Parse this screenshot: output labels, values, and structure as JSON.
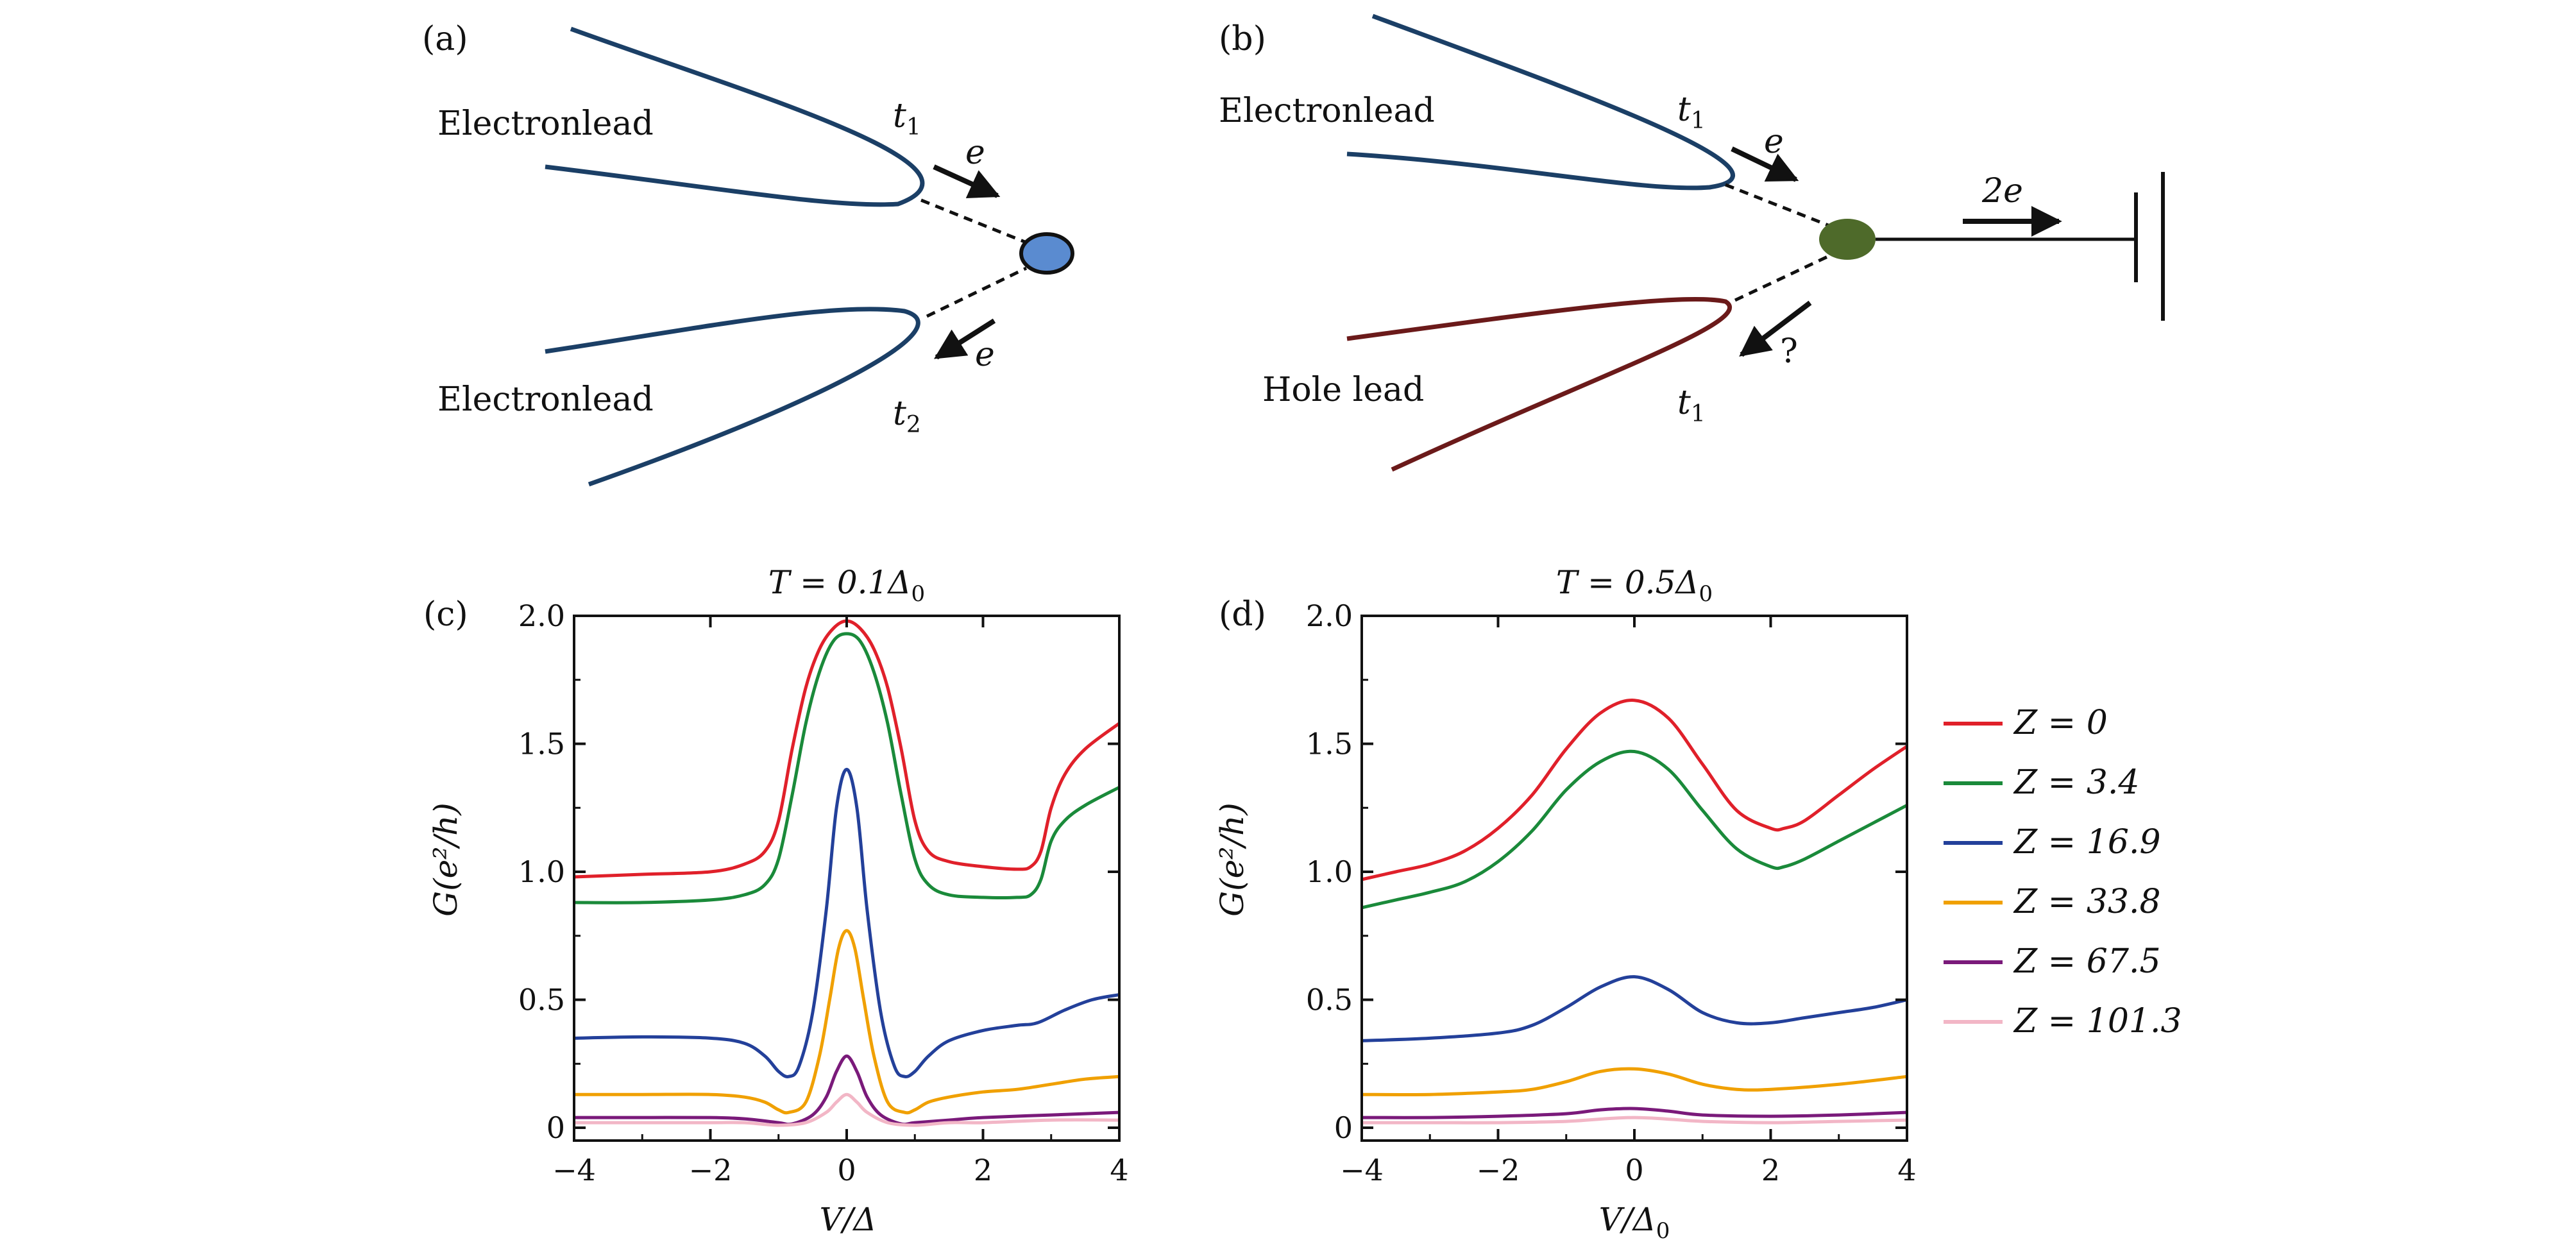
{
  "figure": {
    "panel_a": {
      "tag": "(a)",
      "top_lead": "Electronlead",
      "bottom_lead": "Electronlead",
      "t_top": "t",
      "t_top_sub": "1",
      "t_bottom": "t",
      "t_bottom_sub": "2",
      "e_in": "e",
      "e_out": "e",
      "colors": {
        "lead": "#1b3f66",
        "dot": "#5a8bd0"
      }
    },
    "panel_b": {
      "tag": "(b)",
      "top_lead": "Electronlead",
      "bottom_lead": "Hole lead",
      "t_top": "t",
      "t_top_sub": "1",
      "t_bottom": "t",
      "t_bottom_sub": "1",
      "e_in": "e",
      "two_e": "2e",
      "question": "?",
      "colors": {
        "electron_lead": "#1b3f66",
        "hole_lead": "#6b1a1a",
        "dot": "#4e6a2a"
      }
    }
  },
  "legend": {
    "items": [
      {
        "label": "Z = 0",
        "color": "#e0202a"
      },
      {
        "label": "Z = 3.4",
        "color": "#1a8a3a"
      },
      {
        "label": "Z = 16.9",
        "color": "#23409a"
      },
      {
        "label": "Z = 33.8",
        "color": "#f0a000"
      },
      {
        "label": "Z = 67.5",
        "color": "#7a1a7a"
      },
      {
        "label": "Z = 101.3",
        "color": "#f2b6c6"
      }
    ]
  },
  "chart_data": [
    {
      "type": "line",
      "panel_tag": "(c)",
      "title": "T = 0.1Δ",
      "title_sub": "0",
      "xlabel": "V/Δ",
      "xlabel_sub": "",
      "ylabel": "G(e²/h)",
      "xlim": [
        -4,
        4
      ],
      "ylim": [
        -0.05,
        2.0
      ],
      "xticks": [
        -4,
        -2,
        0,
        2,
        4
      ],
      "xtick_labels": [
        "−4",
        "−2",
        "0",
        "2",
        "4"
      ],
      "yticks": [
        0,
        0.5,
        1.0,
        1.5,
        2.0
      ],
      "ytick_labels": [
        "0",
        "0.5",
        "1.0",
        "1.5",
        "2.0"
      ],
      "series": [
        {
          "name": "Z = 0",
          "color": "#e0202a",
          "x": [
            -4,
            -3,
            -2,
            -1.5,
            -1.2,
            -1.0,
            -0.8,
            -0.6,
            -0.4,
            -0.2,
            0,
            0.2,
            0.4,
            0.6,
            0.8,
            1.0,
            1.2,
            1.5,
            2.0,
            2.5,
            2.7,
            2.85,
            3.0,
            3.2,
            3.5,
            4
          ],
          "y": [
            0.98,
            0.99,
            1.0,
            1.03,
            1.08,
            1.2,
            1.48,
            1.72,
            1.87,
            1.95,
            1.98,
            1.95,
            1.87,
            1.72,
            1.48,
            1.2,
            1.08,
            1.04,
            1.02,
            1.01,
            1.02,
            1.08,
            1.25,
            1.38,
            1.48,
            1.58
          ]
        },
        {
          "name": "Z = 3.4",
          "color": "#1a8a3a",
          "x": [
            -4,
            -3,
            -2,
            -1.5,
            -1.2,
            -1.0,
            -0.8,
            -0.6,
            -0.4,
            -0.2,
            0,
            0.2,
            0.4,
            0.6,
            0.8,
            1.0,
            1.2,
            1.5,
            2.0,
            2.5,
            2.7,
            2.85,
            3.0,
            3.2,
            3.5,
            4
          ],
          "y": [
            0.88,
            0.88,
            0.89,
            0.91,
            0.95,
            1.05,
            1.3,
            1.58,
            1.78,
            1.9,
            1.93,
            1.9,
            1.78,
            1.58,
            1.3,
            1.05,
            0.95,
            0.91,
            0.9,
            0.9,
            0.91,
            0.97,
            1.12,
            1.2,
            1.26,
            1.33
          ]
        },
        {
          "name": "Z = 16.9",
          "color": "#23409a",
          "x": [
            -4,
            -3,
            -2,
            -1.5,
            -1.2,
            -1.0,
            -0.85,
            -0.7,
            -0.5,
            -0.3,
            -0.15,
            0,
            0.15,
            0.3,
            0.5,
            0.7,
            0.85,
            1.0,
            1.2,
            1.5,
            2.0,
            2.5,
            2.8,
            3.2,
            3.6,
            4
          ],
          "y": [
            0.35,
            0.355,
            0.35,
            0.33,
            0.28,
            0.22,
            0.2,
            0.24,
            0.45,
            0.85,
            1.25,
            1.4,
            1.25,
            0.85,
            0.45,
            0.24,
            0.2,
            0.22,
            0.28,
            0.34,
            0.38,
            0.4,
            0.41,
            0.46,
            0.5,
            0.52
          ]
        },
        {
          "name": "Z = 33.8",
          "color": "#f0a000",
          "x": [
            -4,
            -3,
            -2,
            -1.5,
            -1.2,
            -1.0,
            -0.85,
            -0.6,
            -0.4,
            -0.25,
            -0.12,
            0,
            0.12,
            0.25,
            0.4,
            0.6,
            0.85,
            1.0,
            1.2,
            1.5,
            2.0,
            2.5,
            3.0,
            3.5,
            4
          ],
          "y": [
            0.13,
            0.13,
            0.13,
            0.12,
            0.1,
            0.07,
            0.06,
            0.1,
            0.28,
            0.5,
            0.7,
            0.77,
            0.7,
            0.5,
            0.28,
            0.1,
            0.06,
            0.07,
            0.1,
            0.12,
            0.14,
            0.15,
            0.17,
            0.19,
            0.2
          ]
        },
        {
          "name": "Z = 67.5",
          "color": "#7a1a7a",
          "x": [
            -4,
            -3,
            -2,
            -1.5,
            -1.0,
            -0.8,
            -0.5,
            -0.3,
            -0.15,
            0,
            0.15,
            0.3,
            0.5,
            0.8,
            1.0,
            1.5,
            2.0,
            3.0,
            4
          ],
          "y": [
            0.04,
            0.04,
            0.04,
            0.035,
            0.02,
            0.015,
            0.05,
            0.12,
            0.22,
            0.28,
            0.22,
            0.12,
            0.05,
            0.015,
            0.02,
            0.03,
            0.04,
            0.05,
            0.06
          ]
        },
        {
          "name": "Z = 101.3",
          "color": "#f2b6c6",
          "x": [
            -4,
            -3,
            -2,
            -1.5,
            -1.0,
            -0.6,
            -0.3,
            -0.15,
            0,
            0.15,
            0.3,
            0.6,
            1.0,
            1.5,
            2.0,
            3.0,
            4
          ],
          "y": [
            0.02,
            0.02,
            0.02,
            0.02,
            0.01,
            0.02,
            0.06,
            0.1,
            0.13,
            0.1,
            0.06,
            0.02,
            0.01,
            0.02,
            0.02,
            0.03,
            0.03
          ]
        }
      ]
    },
    {
      "type": "line",
      "panel_tag": "(d)",
      "title": "T = 0.5Δ",
      "title_sub": "0",
      "xlabel": "V/Δ",
      "xlabel_sub": "0",
      "ylabel": "G(e²/h)",
      "xlim": [
        -4,
        4
      ],
      "ylim": [
        -0.05,
        2.0
      ],
      "xticks": [
        -4,
        -2,
        0,
        2,
        4
      ],
      "xtick_labels": [
        "−4",
        "−2",
        "0",
        "2",
        "4"
      ],
      "yticks": [
        0,
        0.5,
        1.0,
        1.5,
        2.0
      ],
      "ytick_labels": [
        "0",
        "0.5",
        "1.0",
        "1.5",
        "2.0"
      ],
      "series": [
        {
          "name": "Z = 0",
          "color": "#e0202a",
          "x": [
            -4,
            -3.5,
            -3,
            -2.5,
            -2,
            -1.5,
            -1,
            -0.5,
            0,
            0.5,
            1,
            1.5,
            2,
            2.2,
            2.5,
            3,
            3.5,
            4
          ],
          "y": [
            0.97,
            1.0,
            1.03,
            1.08,
            1.17,
            1.3,
            1.48,
            1.62,
            1.67,
            1.6,
            1.42,
            1.24,
            1.17,
            1.17,
            1.2,
            1.3,
            1.4,
            1.49
          ]
        },
        {
          "name": "Z = 3.4",
          "color": "#1a8a3a",
          "x": [
            -4,
            -3.5,
            -3,
            -2.5,
            -2,
            -1.5,
            -1,
            -0.5,
            0,
            0.5,
            1,
            1.5,
            2,
            2.2,
            2.5,
            3,
            3.5,
            4
          ],
          "y": [
            0.86,
            0.89,
            0.92,
            0.96,
            1.04,
            1.16,
            1.32,
            1.43,
            1.47,
            1.4,
            1.24,
            1.09,
            1.02,
            1.02,
            1.05,
            1.12,
            1.19,
            1.26
          ]
        },
        {
          "name": "Z = 16.9",
          "color": "#23409a",
          "x": [
            -4,
            -3,
            -2,
            -1.5,
            -1,
            -0.5,
            0,
            0.5,
            1,
            1.5,
            2,
            2.5,
            3,
            3.5,
            4
          ],
          "y": [
            0.34,
            0.35,
            0.37,
            0.4,
            0.47,
            0.55,
            0.59,
            0.54,
            0.45,
            0.41,
            0.41,
            0.43,
            0.45,
            0.47,
            0.5
          ]
        },
        {
          "name": "Z = 33.8",
          "color": "#f0a000",
          "x": [
            -4,
            -3,
            -2,
            -1.5,
            -1,
            -0.5,
            0,
            0.5,
            1,
            1.5,
            2,
            3,
            4
          ],
          "y": [
            0.13,
            0.13,
            0.14,
            0.15,
            0.18,
            0.22,
            0.23,
            0.21,
            0.17,
            0.15,
            0.15,
            0.17,
            0.2
          ]
        },
        {
          "name": "Z = 67.5",
          "color": "#7a1a7a",
          "x": [
            -4,
            -3,
            -2,
            -1,
            -0.5,
            0,
            0.5,
            1,
            2,
            3,
            4
          ],
          "y": [
            0.04,
            0.04,
            0.045,
            0.055,
            0.07,
            0.075,
            0.065,
            0.05,
            0.045,
            0.05,
            0.06
          ]
        },
        {
          "name": "Z = 101.3",
          "color": "#f2b6c6",
          "x": [
            -4,
            -3,
            -2,
            -1,
            0,
            1,
            2,
            3,
            4
          ],
          "y": [
            0.02,
            0.02,
            0.02,
            0.025,
            0.04,
            0.025,
            0.02,
            0.025,
            0.03
          ]
        }
      ]
    }
  ]
}
